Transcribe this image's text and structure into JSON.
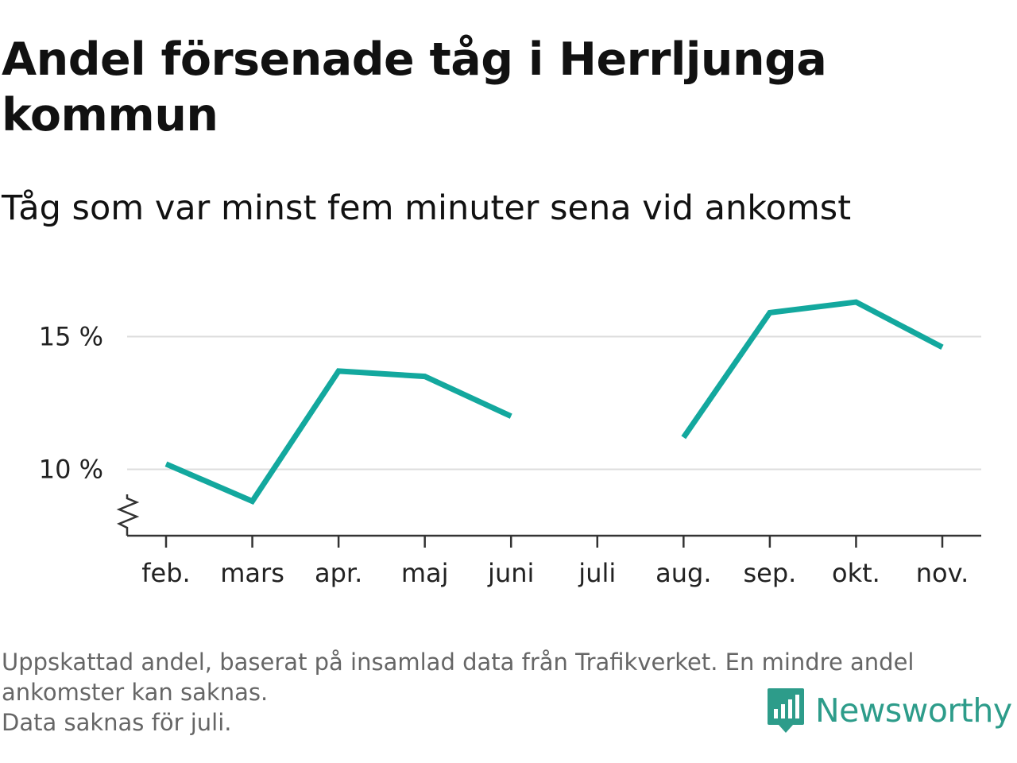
{
  "title": "Andel försenade tåg i Herrljunga kommun",
  "subtitle": "Tåg som var minst fem minuter sena vid ankomst",
  "chart_data": {
    "type": "line",
    "categories": [
      "feb.",
      "mars",
      "apr.",
      "maj",
      "juni",
      "juli",
      "aug.",
      "sep.",
      "okt.",
      "nov."
    ],
    "series": [
      {
        "values": [
          10.2,
          8.8,
          13.7,
          13.5,
          12.0,
          null,
          11.2,
          15.9,
          16.3,
          14.6
        ]
      }
    ],
    "y_ticks": [
      10,
      15
    ],
    "y_tick_labels": [
      "10 %",
      "15 %"
    ],
    "ylim": [
      7.5,
      17.5
    ],
    "y_axis_break": true,
    "grid": "horizontal",
    "line_color": "#13a89e"
  },
  "footer": {
    "line1": "Uppskattad andel, baserat på insamlad data från Trafikverket. En mindre andel",
    "line2": "ankomster kan saknas.",
    "line3": "Data saknas för juli."
  },
  "logo": {
    "text": "Newsworthy",
    "icon": "newsworthy-logo-icon",
    "color": "#2d9c8a"
  }
}
